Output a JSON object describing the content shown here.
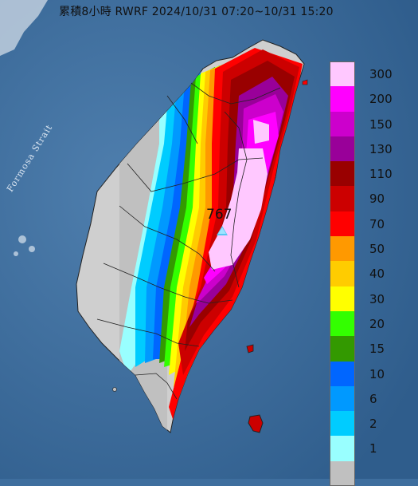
{
  "title": "累積8小時 RWRF 2024/10/31 07:20~10/31 15:20",
  "strait_label": "Formosa Strait",
  "peak": {
    "value": "767"
  },
  "legend": [
    {
      "label": "300",
      "color": "#ffc8ff"
    },
    {
      "label": "200",
      "color": "#ff00ff"
    },
    {
      "label": "150",
      "color": "#cc00cc"
    },
    {
      "label": "130",
      "color": "#990099"
    },
    {
      "label": "110",
      "color": "#990000"
    },
    {
      "label": "90",
      "color": "#cc0000"
    },
    {
      "label": "70",
      "color": "#ff0000"
    },
    {
      "label": "50",
      "color": "#ff9900"
    },
    {
      "label": "40",
      "color": "#ffcc00"
    },
    {
      "label": "30",
      "color": "#ffff00"
    },
    {
      "label": "20",
      "color": "#33ff00"
    },
    {
      "label": "15",
      "color": "#339900"
    },
    {
      "label": "10",
      "color": "#0066ff"
    },
    {
      "label": "6",
      "color": "#0099ff"
    },
    {
      "label": "2",
      "color": "#00ccff"
    },
    {
      "label": "1",
      "color": "#99ffff"
    },
    {
      "label": "",
      "color": "#c0c0c0"
    }
  ]
}
